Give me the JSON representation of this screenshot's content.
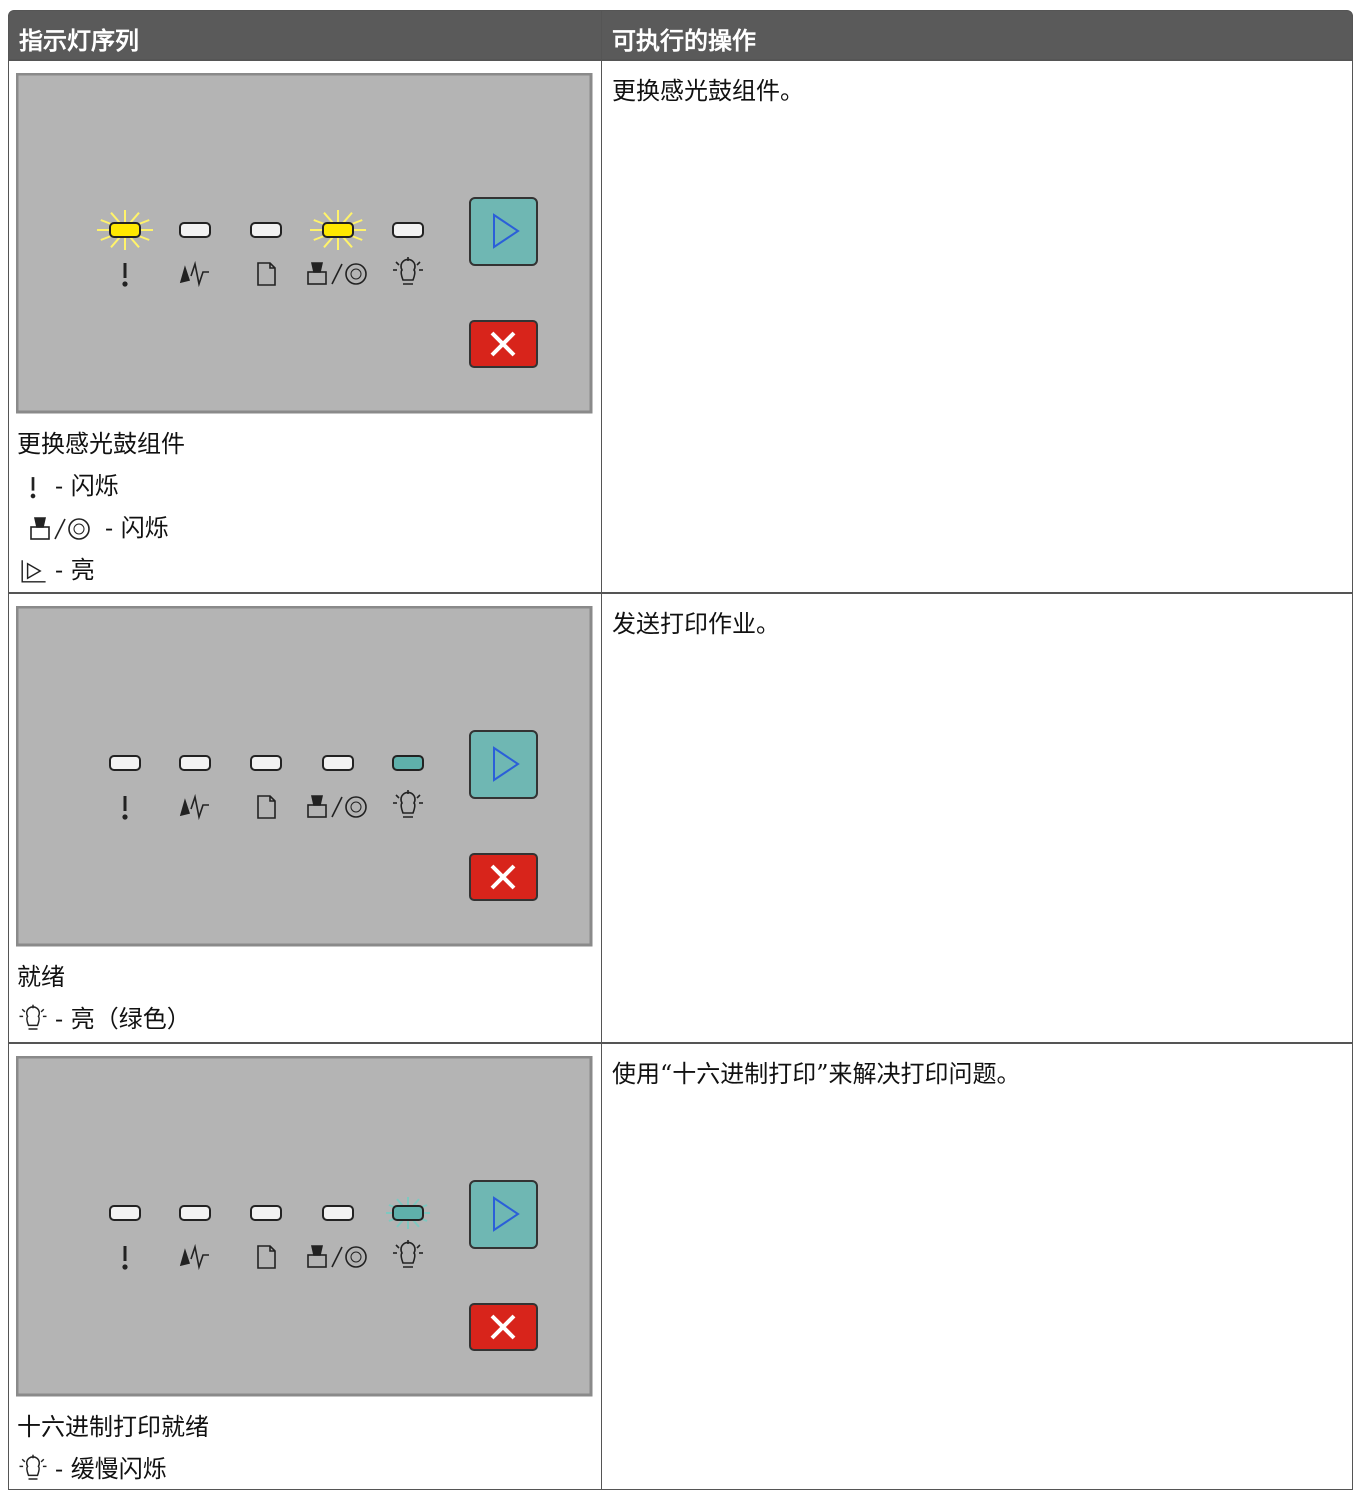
{
  "table": {
    "headers": [
      "指示灯序列",
      "可执行的操作"
    ],
    "rows": [
      {
        "status": "更换感光鼓组件",
        "legend": [
          "- 闪烁",
          "- 闪烁",
          "- 亮"
        ],
        "action": "更换感光鼓组件。"
      },
      {
        "status": "就绪",
        "legend": [
          "- 亮（绿色）"
        ],
        "action": "发送打印作业。"
      },
      {
        "status": "十六进制打印就绪",
        "legend": [
          "- 缓慢闪烁"
        ],
        "action": "使用“十六进制打印”来解决打印问题。"
      }
    ]
  }
}
